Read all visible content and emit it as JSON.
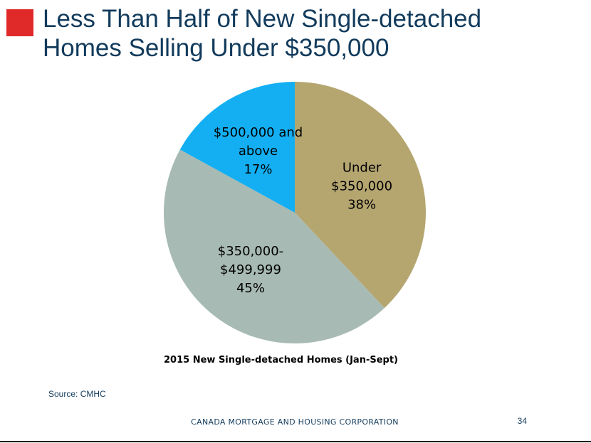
{
  "theme": {
    "accent": "#e02a2a",
    "title_color": "#123b5c",
    "text_color": "#000000",
    "source_color": "#123b5c",
    "footer_color": "#123b5c"
  },
  "title": {
    "line1": "Less Than Half of New Single-detached",
    "line2": "Homes Selling Under $350,000"
  },
  "chart_data": {
    "type": "pie",
    "title": "2015 New Single-detached Homes (Jan-Sept)",
    "start_angle_deg": 0,
    "direction": "clockwise",
    "slices": [
      {
        "label_lines": [
          "Under",
          "$350,000",
          "38%"
        ],
        "value": 38,
        "color": "#b5a670"
      },
      {
        "label_lines": [
          "$350,000-",
          "$499,999",
          "45%"
        ],
        "value": 45,
        "color": "#a7bab3"
      },
      {
        "label_lines": [
          "$500,000 and",
          "above",
          "17%"
        ],
        "value": 17,
        "color": "#14aff3"
      }
    ]
  },
  "source": "Source:  CMHC",
  "footer": {
    "organization": "CANADA MORTGAGE AND HOUSING CORPORATION",
    "page_number": "34"
  }
}
